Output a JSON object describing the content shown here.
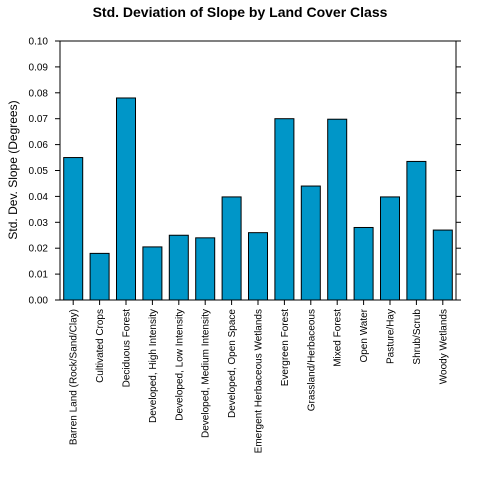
{
  "chart_data": {
    "type": "bar",
    "title": "Std. Deviation of Slope by Land Cover Class",
    "xlabel": "",
    "ylabel": "Std. Dev. Slope (Degrees)",
    "ylim": [
      0,
      0.1
    ],
    "yticks": [
      "0.00",
      "0.01",
      "0.02",
      "0.03",
      "0.04",
      "0.05",
      "0.06",
      "0.07",
      "0.08",
      "0.09",
      "0.10"
    ],
    "grid": false,
    "bar_color": "#0096c8",
    "categories": [
      "Barren Land (Rock/Sand/Clay)",
      "Cultivated Crops",
      "Deciduous Forest",
      "Developed, High Intensity",
      "Developed, Low Intensity",
      "Developed, Medium Intensity",
      "Developed, Open Space",
      "Emergent Herbaceous Wetlands",
      "Evergreen Forest",
      "Grassland/Herbaceous",
      "Mixed Forest",
      "Open Water",
      "Pasture/Hay",
      "Shrub/Scrub",
      "Woody Wetlands"
    ],
    "values": [
      0.055,
      0.018,
      0.078,
      0.0205,
      0.025,
      0.024,
      0.0398,
      0.026,
      0.07,
      0.044,
      0.0698,
      0.028,
      0.0398,
      0.0535,
      0.027
    ]
  }
}
